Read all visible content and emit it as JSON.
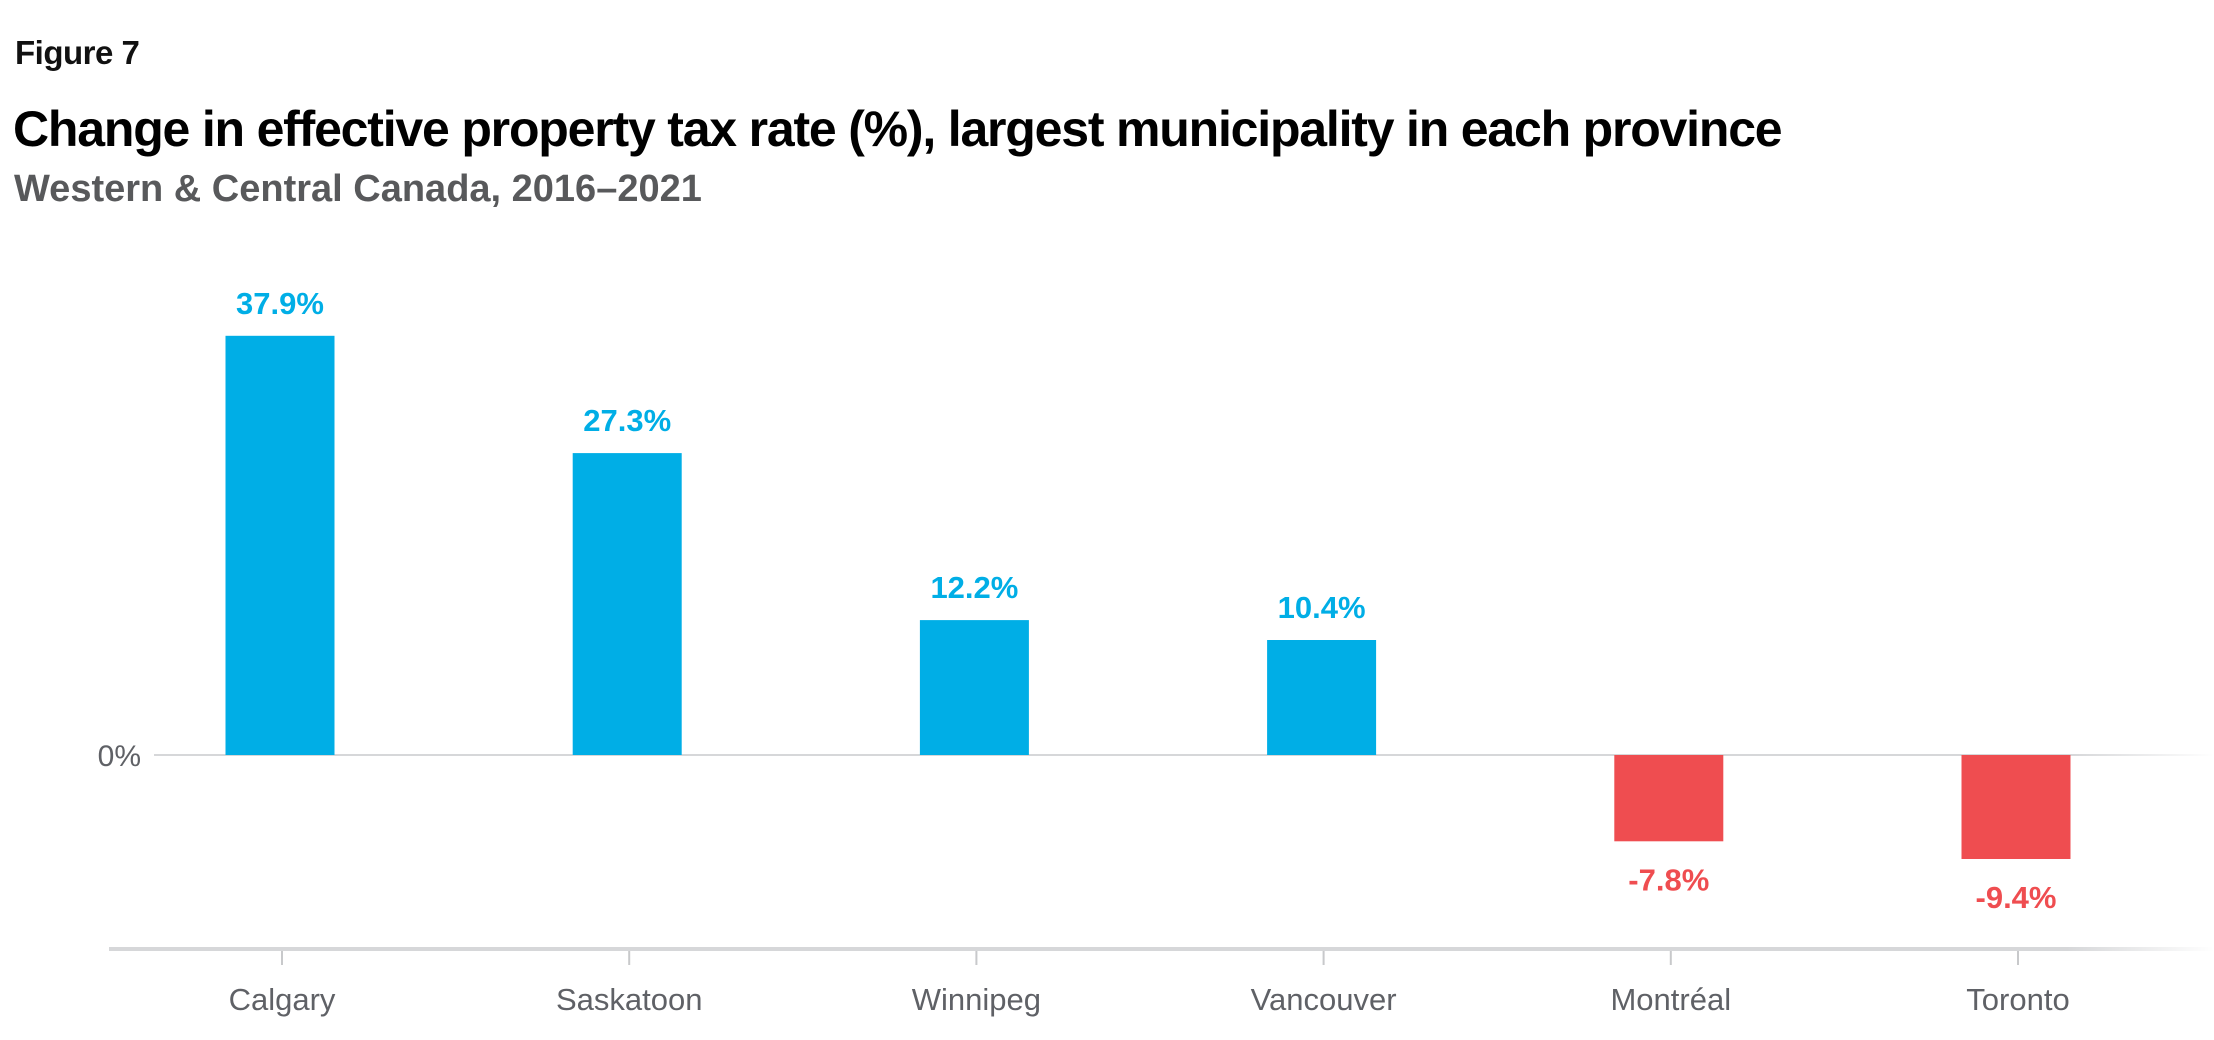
{
  "header": {
    "figure_label": "Figure 7",
    "title": "Change in effective property tax rate (%), largest municipality in each province",
    "subtitle": "Western & Central Canada, 2016–2021"
  },
  "colors": {
    "positive": "#00aee6",
    "negative": "#ef4d50",
    "axis": "#d6d7d9",
    "tick_text": "#5f6166"
  },
  "chart_data": {
    "type": "bar",
    "title": "Change in effective property tax rate (%), largest municipality in each province",
    "subtitle": "Western & Central Canada, 2016–2021",
    "xlabel": "",
    "ylabel": "",
    "categories": [
      "Calgary",
      "Saskatoon",
      "Winnipeg",
      "Vancouver",
      "Montréal",
      "Toronto"
    ],
    "values": [
      37.9,
      27.3,
      12.2,
      10.4,
      -7.8,
      -9.4
    ],
    "value_labels": [
      "37.9%",
      "27.3%",
      "12.2%",
      "10.4%",
      "-7.8%",
      "-9.4%"
    ],
    "y_ticks": [
      0
    ],
    "y_tick_labels": [
      "0%"
    ],
    "ylim": [
      -12.4,
      38.2
    ],
    "grid": false,
    "legend": "none",
    "units": "%"
  }
}
